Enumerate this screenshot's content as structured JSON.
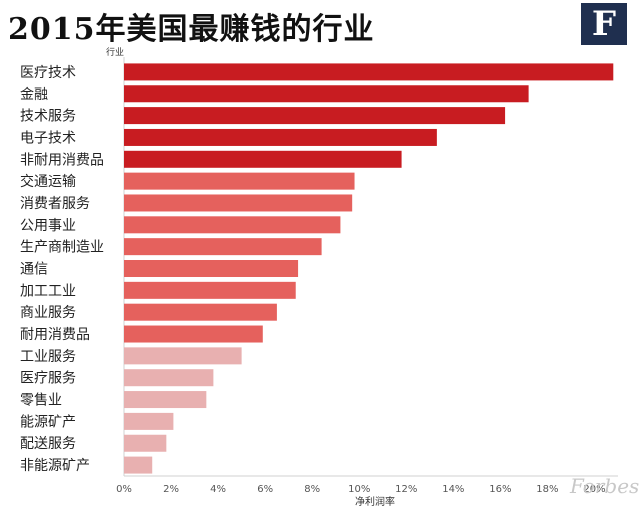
{
  "title": "2015年美国最赚钱的行业",
  "logo_letter": "F",
  "watermark": "Forbes",
  "chart_data": {
    "type": "bar",
    "orientation": "horizontal",
    "y_axis_title": "行业",
    "xlabel": "净利润率",
    "xlim": [
      0,
      21
    ],
    "x_ticks": [
      "0%",
      "2%",
      "4%",
      "6%",
      "8%",
      "10%",
      "12%",
      "14%",
      "16%",
      "18%",
      "20%"
    ],
    "categories": [
      "医疗技术",
      "金融",
      "技术服务",
      "电子技术",
      "非耐用消费品",
      "交通运输",
      "消费者服务",
      "公用事业",
      "生产商制造业",
      "通信",
      "加工工业",
      "商业服务",
      "耐用消费品",
      "工业服务",
      "医疗服务",
      "零售业",
      "能源矿产",
      "配送服务",
      "非能源矿产"
    ],
    "values": [
      20.8,
      17.2,
      16.2,
      13.3,
      11.8,
      9.8,
      9.7,
      9.2,
      8.4,
      7.4,
      7.3,
      6.5,
      5.9,
      5.0,
      3.8,
      3.5,
      2.1,
      1.8,
      1.2
    ],
    "colors": {
      "dark": "#c81c21",
      "medium": "#e5615d",
      "light": "#e8b0b0"
    },
    "color_groups": [
      "dark",
      "dark",
      "dark",
      "dark",
      "dark",
      "medium",
      "medium",
      "medium",
      "medium",
      "medium",
      "medium",
      "medium",
      "medium",
      "light",
      "light",
      "light",
      "light",
      "light",
      "light"
    ]
  }
}
